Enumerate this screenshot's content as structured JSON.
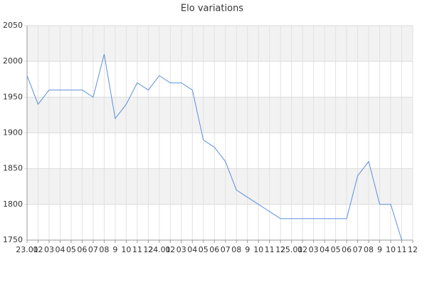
{
  "chart_data": {
    "type": "line",
    "title": "Elo variations",
    "categories": [
      "23.01",
      "02",
      "03",
      "04",
      "05",
      "06",
      "07",
      "08",
      "9",
      "10",
      "11",
      "12",
      "24.01",
      "02",
      "03",
      "04",
      "05",
      "06",
      "07",
      "08",
      "9",
      "10",
      "11",
      "12",
      "25.01",
      "02",
      "03",
      "04",
      "05",
      "06",
      "07",
      "08",
      "9",
      "10",
      "11",
      "12"
    ],
    "values": [
      1980,
      1940,
      1960,
      1960,
      1960,
      1960,
      1950,
      2010,
      1920,
      1940,
      1970,
      1960,
      1980,
      1970,
      1970,
      1960,
      1890,
      1880,
      1860,
      1820,
      1810,
      1800,
      1790,
      1780,
      1780,
      1780,
      1780,
      1780,
      1780,
      1780,
      1840,
      1860,
      1800,
      1800,
      1750,
      null
    ],
    "color": "#5a8fdc",
    "ylim": [
      1750,
      2050
    ],
    "yticks": [
      1750,
      1800,
      1850,
      1900,
      1950,
      2000,
      2050
    ],
    "grid": true
  }
}
